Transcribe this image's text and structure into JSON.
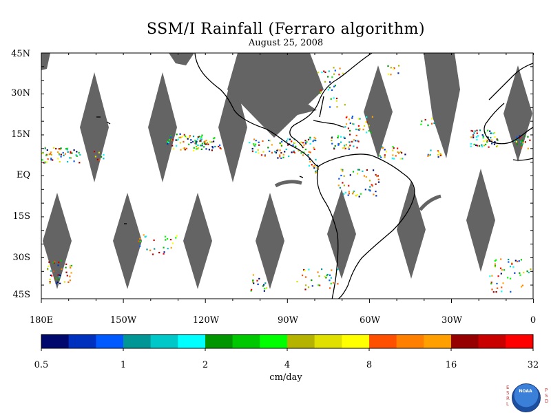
{
  "title": "SSM/I Rainfall (Ferraro algorithm)",
  "date": "August 25, 2008",
  "lat_labels": [
    "45N",
    "30N",
    "15N",
    "EQ",
    "15S",
    "30S",
    "45S"
  ],
  "lon_labels": [
    "180E",
    "150W",
    "120W",
    "90W",
    "60W",
    "30W",
    "0"
  ],
  "colorbar": {
    "units": "cm/day",
    "tick_labels": [
      "0.5",
      "1",
      "2",
      "4",
      "8",
      "16",
      "32"
    ],
    "colors": [
      "#00086e",
      "#0030be",
      "#0058ff",
      "#009696",
      "#00c8c8",
      "#00ffff",
      "#009600",
      "#00c800",
      "#00ff00",
      "#b4b400",
      "#e0e000",
      "#ffff00",
      "#ff5000",
      "#ff8000",
      "#ffa000",
      "#960000",
      "#c80000",
      "#ff0000"
    ]
  },
  "logo": {
    "left_letters": "ESRL",
    "right_letters": "PSD",
    "emblem_text": "NOAA"
  },
  "colors": {
    "no_data_swath": "#646464",
    "coastline": "#000000",
    "background": "#ffffff"
  }
}
